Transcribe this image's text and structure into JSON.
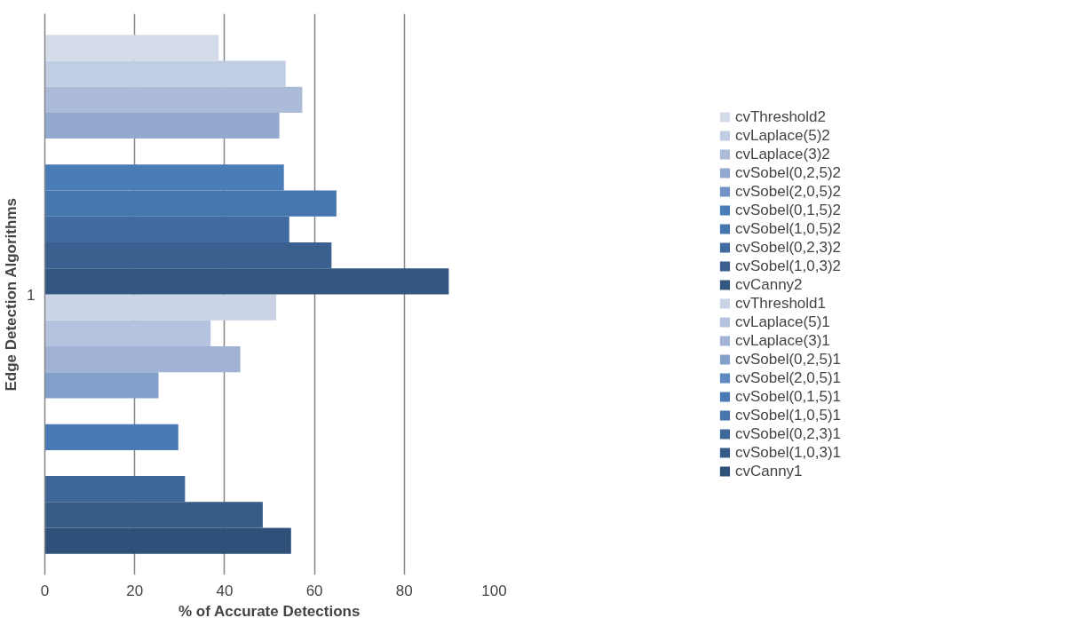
{
  "chart_data": {
    "type": "bar",
    "orientation": "horizontal",
    "categories": [
      "1"
    ],
    "xlabel": "% of Accurate Detections",
    "ylabel": "Edge Detection Algorithms",
    "xlim": [
      0,
      100
    ],
    "xticks": [
      0,
      20,
      40,
      60,
      80,
      100
    ],
    "grid": "x",
    "legend": "right",
    "series": [
      {
        "name": "cvCanny1",
        "color": "#2f5078",
        "values": [
          54.8
        ]
      },
      {
        "name": "cvSobel(1,0,3)1",
        "color": "#385c88",
        "values": [
          48.5
        ]
      },
      {
        "name": "cvSobel(0,2,3)1",
        "color": "#3e6699",
        "values": [
          31.2
        ]
      },
      {
        "name": "cvSobel(1,0,5)1",
        "color": "#4674ab",
        "values": [
          null
        ]
      },
      {
        "name": "cvSobel(0,1,5)1",
        "color": "#4a7ab5",
        "values": [
          29.7
        ]
      },
      {
        "name": "cvSobel(2,0,5)1",
        "color": "#6189c1",
        "values": [
          null
        ]
      },
      {
        "name": "cvSobel(0,2,5)1",
        "color": "#849fca",
        "values": [
          25.3
        ]
      },
      {
        "name": "cvLaplace(3)1",
        "color": "#a1b3d5",
        "values": [
          43.5
        ]
      },
      {
        "name": "cvLaplace(5)1",
        "color": "#b5c3df",
        "values": [
          36.9
        ]
      },
      {
        "name": "cvThreshold1",
        "color": "#cad4e6",
        "values": [
          51.5
        ]
      },
      {
        "name": "cvCanny2",
        "color": "#33577f",
        "values": [
          89.9
        ]
      },
      {
        "name": "cvSobel(1,0,3)2",
        "color": "#3b608f",
        "values": [
          63.8
        ]
      },
      {
        "name": "cvSobel(0,2,3)2",
        "color": "#416a9f",
        "values": [
          54.4
        ]
      },
      {
        "name": "cvSobel(1,0,5)2",
        "color": "#4676ae",
        "values": [
          64.9
        ]
      },
      {
        "name": "cvSobel(0,1,5)2",
        "color": "#4a7cb8",
        "values": [
          53.2
        ]
      },
      {
        "name": "cvSobel(2,0,5)2",
        "color": "#7292c8",
        "values": [
          null
        ]
      },
      {
        "name": "cvSobel(0,2,5)2",
        "color": "#93a9d0",
        "values": [
          52.2
        ]
      },
      {
        "name": "cvLaplace(3)2",
        "color": "#abbbd8",
        "values": [
          57.3
        ]
      },
      {
        "name": "cvLaplace(5)2",
        "color": "#c1cde2",
        "values": [
          53.6
        ]
      },
      {
        "name": "cvThreshold2",
        "color": "#d4dcea",
        "values": [
          38.7
        ]
      }
    ]
  }
}
